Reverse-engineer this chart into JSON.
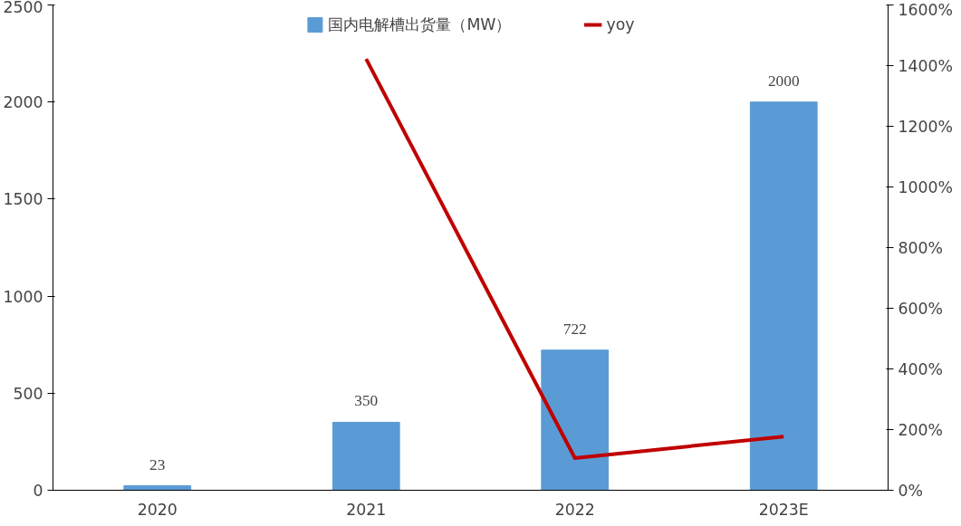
{
  "chart_data": {
    "type": "bar",
    "categories": [
      "2020",
      "2021",
      "2022",
      "2023E"
    ],
    "series": [
      {
        "name": "国内电解槽出货量（MW）",
        "color": "#5b9bd5",
        "values": [
          23,
          350,
          722,
          2000
        ],
        "value_labels": [
          "23",
          "350",
          "722",
          "2000"
        ]
      },
      {
        "name": "yoy",
        "type": "line",
        "axis": "y2",
        "color": "#c00000",
        "values": [
          null,
          1422,
          106,
          177
        ]
      }
    ],
    "legend": "top",
    "grid": false,
    "marker": "none",
    "line_style": "solid",
    "ylim": [
      0,
      2500
    ],
    "yticks": [
      0,
      500,
      1000,
      1500,
      2000,
      2500
    ],
    "y2lim": [
      0,
      1600
    ],
    "y2ticks": [
      {
        "value": 0,
        "label": "0%"
      },
      {
        "value": 200,
        "label": "200%"
      },
      {
        "value": 400,
        "label": "400%"
      },
      {
        "value": 600,
        "label": "600%"
      },
      {
        "value": 800,
        "label": "800%"
      },
      {
        "value": 1000,
        "label": "1000%"
      },
      {
        "value": 1200,
        "label": "1200%"
      },
      {
        "value": 1400,
        "label": "1400%"
      },
      {
        "value": 1600,
        "label": "1600%"
      }
    ]
  }
}
